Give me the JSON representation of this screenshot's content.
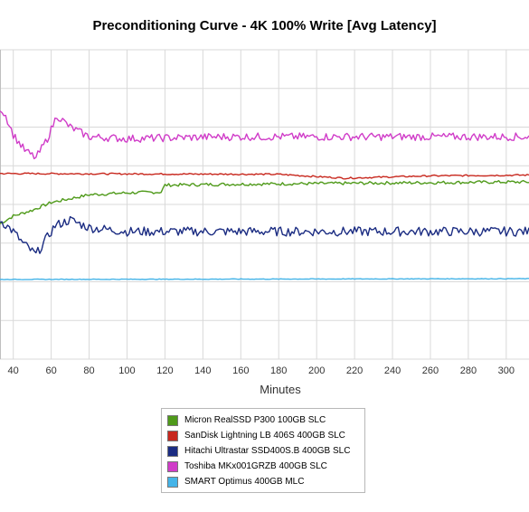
{
  "chart_data": {
    "type": "line",
    "title": "Preconditioning Curve - 4K 100% Write [Avg Latency]",
    "xlabel": "Minutes",
    "ylabel": "",
    "x_ticks": [
      40,
      60,
      80,
      100,
      120,
      140,
      160,
      180,
      200,
      220,
      240,
      260,
      280,
      300
    ],
    "xlim": [
      33,
      312
    ],
    "grid": true,
    "legend_position": "bottom",
    "series": [
      {
        "name": "Micron RealSSD P300 100GB SLC",
        "color": "#4f9a1a",
        "points": [
          [
            33,
            0.35
          ],
          [
            40,
            0.37
          ],
          [
            50,
            0.385
          ],
          [
            60,
            0.405
          ],
          [
            80,
            0.425
          ],
          [
            100,
            0.43
          ],
          [
            118,
            0.432
          ],
          [
            120,
            0.45
          ],
          [
            150,
            0.452
          ],
          [
            200,
            0.454
          ],
          [
            250,
            0.456
          ],
          [
            300,
            0.458
          ],
          [
            312,
            0.458
          ]
        ]
      },
      {
        "name": "SanDisk Lightning LB 406S 400GB SLC",
        "color": "#c8281e",
        "points": [
          [
            33,
            0.48
          ],
          [
            100,
            0.479
          ],
          [
            180,
            0.478
          ],
          [
            200,
            0.472
          ],
          [
            215,
            0.468
          ],
          [
            230,
            0.47
          ],
          [
            260,
            0.474
          ],
          [
            312,
            0.476
          ]
        ]
      },
      {
        "name": "Hitachi Ultrastar SSD400S.B 400GB SLC",
        "color": "#1b2c82",
        "points": [
          [
            33,
            0.36
          ],
          [
            40,
            0.33
          ],
          [
            45,
            0.3
          ],
          [
            52,
            0.27
          ],
          [
            56,
            0.3
          ],
          [
            62,
            0.345
          ],
          [
            70,
            0.36
          ],
          [
            80,
            0.34
          ],
          [
            100,
            0.33
          ],
          [
            150,
            0.33
          ],
          [
            200,
            0.33
          ],
          [
            250,
            0.33
          ],
          [
            312,
            0.33
          ]
        ]
      },
      {
        "name": "Toshiba MKx001GRZB 400GB SLC",
        "color": "#d03cc8",
        "points": [
          [
            33,
            0.65
          ],
          [
            36,
            0.63
          ],
          [
            40,
            0.58
          ],
          [
            46,
            0.54
          ],
          [
            52,
            0.52
          ],
          [
            58,
            0.57
          ],
          [
            63,
            0.63
          ],
          [
            70,
            0.6
          ],
          [
            80,
            0.575
          ],
          [
            100,
            0.57
          ],
          [
            150,
            0.575
          ],
          [
            200,
            0.575
          ],
          [
            250,
            0.575
          ],
          [
            312,
            0.575
          ]
        ]
      },
      {
        "name": "SMART Optimus 400GB MLC",
        "color": "#44b4e8",
        "points": [
          [
            33,
            0.206
          ],
          [
            312,
            0.208
          ]
        ]
      }
    ]
  },
  "legend": {
    "items": [
      {
        "label": "Micron RealSSD P300 100GB SLC",
        "color": "#4f9a1a"
      },
      {
        "label": "SanDisk Lightning LB 406S 400GB SLC",
        "color": "#c8281e"
      },
      {
        "label": "Hitachi Ultrastar SSD400S.B 400GB SLC",
        "color": "#1b2c82"
      },
      {
        "label": "Toshiba MKx001GRZB 400GB SLC",
        "color": "#d03cc8"
      },
      {
        "label": "SMART Optimus 400GB MLC",
        "color": "#44b4e8"
      }
    ]
  }
}
